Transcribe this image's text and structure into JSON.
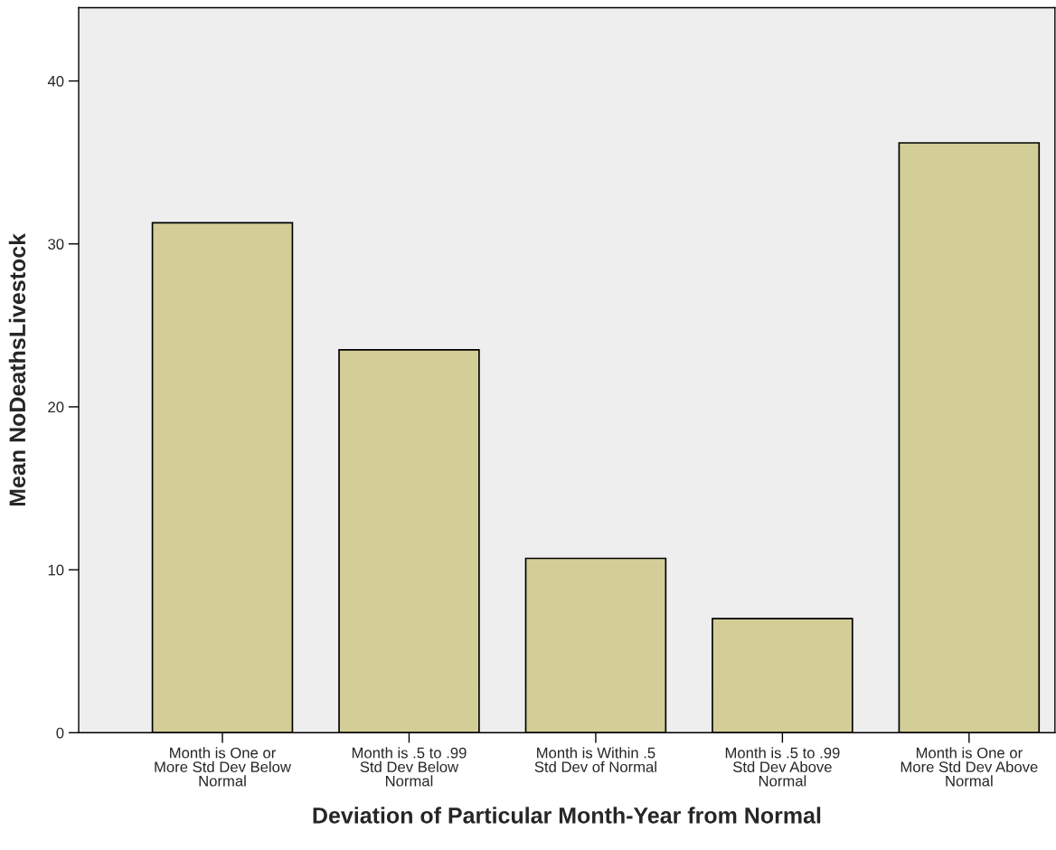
{
  "chart_data": {
    "type": "bar",
    "categories": [
      "Month is One or\nMore Std Dev Below\nNormal",
      "Month is .5 to .99\nStd Dev Below\nNormal",
      "Month is Within .5\nStd Dev of Normal",
      "Month is .5 to .99\nStd Dev Above\nNormal",
      "Month is One or\nMore Std Dev Above\nNormal"
    ],
    "values": [
      31.3,
      23.5,
      10.7,
      7.0,
      36.2
    ],
    "color": "#d3ce97",
    "xlabel": "Deviation of Particular Month-Year from Normal",
    "ylabel": "Mean NoDeathsLivestock",
    "ylim": [
      0,
      44.5
    ],
    "yticks": [
      0,
      10,
      20,
      30,
      40
    ],
    "grid": false
  }
}
